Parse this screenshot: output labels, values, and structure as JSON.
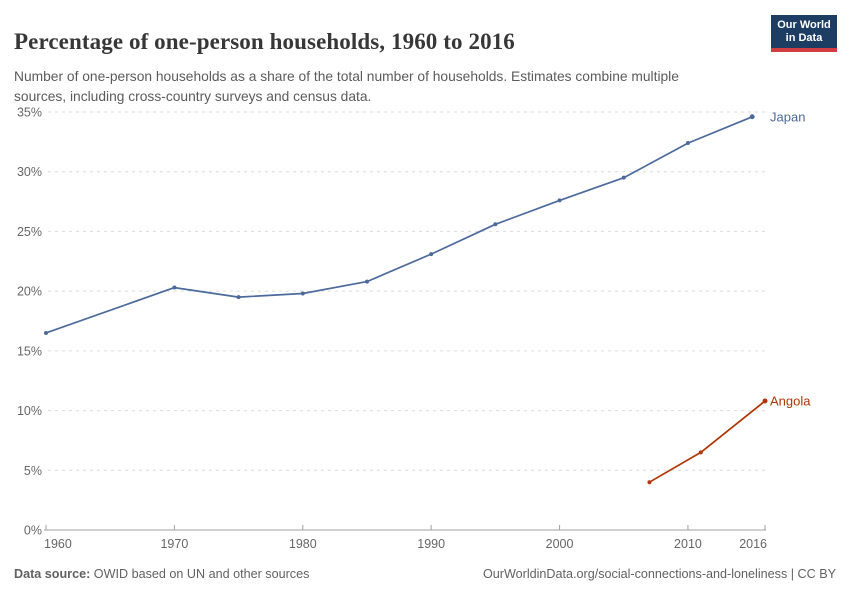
{
  "header": {
    "title": "Percentage of one-person households, 1960 to 2016",
    "subtitle": "Number of one-person households as a share of the total number of households. Estimates combine multiple sources, including cross-country surveys and census data.",
    "logo": {
      "line1": "Our World",
      "line2": "in Data"
    }
  },
  "footer": {
    "source_label": "Data source:",
    "source_text": " OWID based on UN and other sources",
    "citation_text": "OurWorldinData.org/social-connections-and-loneliness | CC BY"
  },
  "colors": {
    "title": "#373737",
    "subtitle": "#5b5b5b",
    "axis_line": "#a1a1a1",
    "gridline": "#dcdcdc",
    "tick_label": "#666666",
    "logo_navy": "#1d3d63",
    "logo_red": "#d13d41",
    "japan": "#4C6A9C",
    "angola": "#B13507"
  },
  "chart_data": {
    "type": "line",
    "title": "Percentage of one-person households, 1960 to 2016",
    "xlabel": "",
    "ylabel": "",
    "xlim": [
      1960,
      2016
    ],
    "ylim": [
      0,
      35
    ],
    "x_ticks": [
      1960,
      1970,
      1980,
      1990,
      2000,
      2010,
      2016
    ],
    "y_ticks": [
      0,
      5,
      10,
      15,
      20,
      25,
      30,
      35
    ],
    "y_tick_suffix": "%",
    "grid": "horizontal-dashed",
    "legend_position": "end-of-line-labels",
    "series": [
      {
        "name": "Japan",
        "color": "#4C6A9C",
        "x": [
          1960,
          1970,
          1975,
          1980,
          1985,
          1990,
          1995,
          2000,
          2005,
          2010,
          2015
        ],
        "y": [
          16.5,
          20.3,
          19.5,
          19.8,
          20.8,
          23.1,
          25.6,
          27.6,
          29.5,
          32.4,
          34.6
        ]
      },
      {
        "name": "Angola",
        "color": "#B13507",
        "x": [
          2007,
          2011,
          2016
        ],
        "y": [
          4.0,
          6.5,
          10.8
        ]
      }
    ]
  }
}
